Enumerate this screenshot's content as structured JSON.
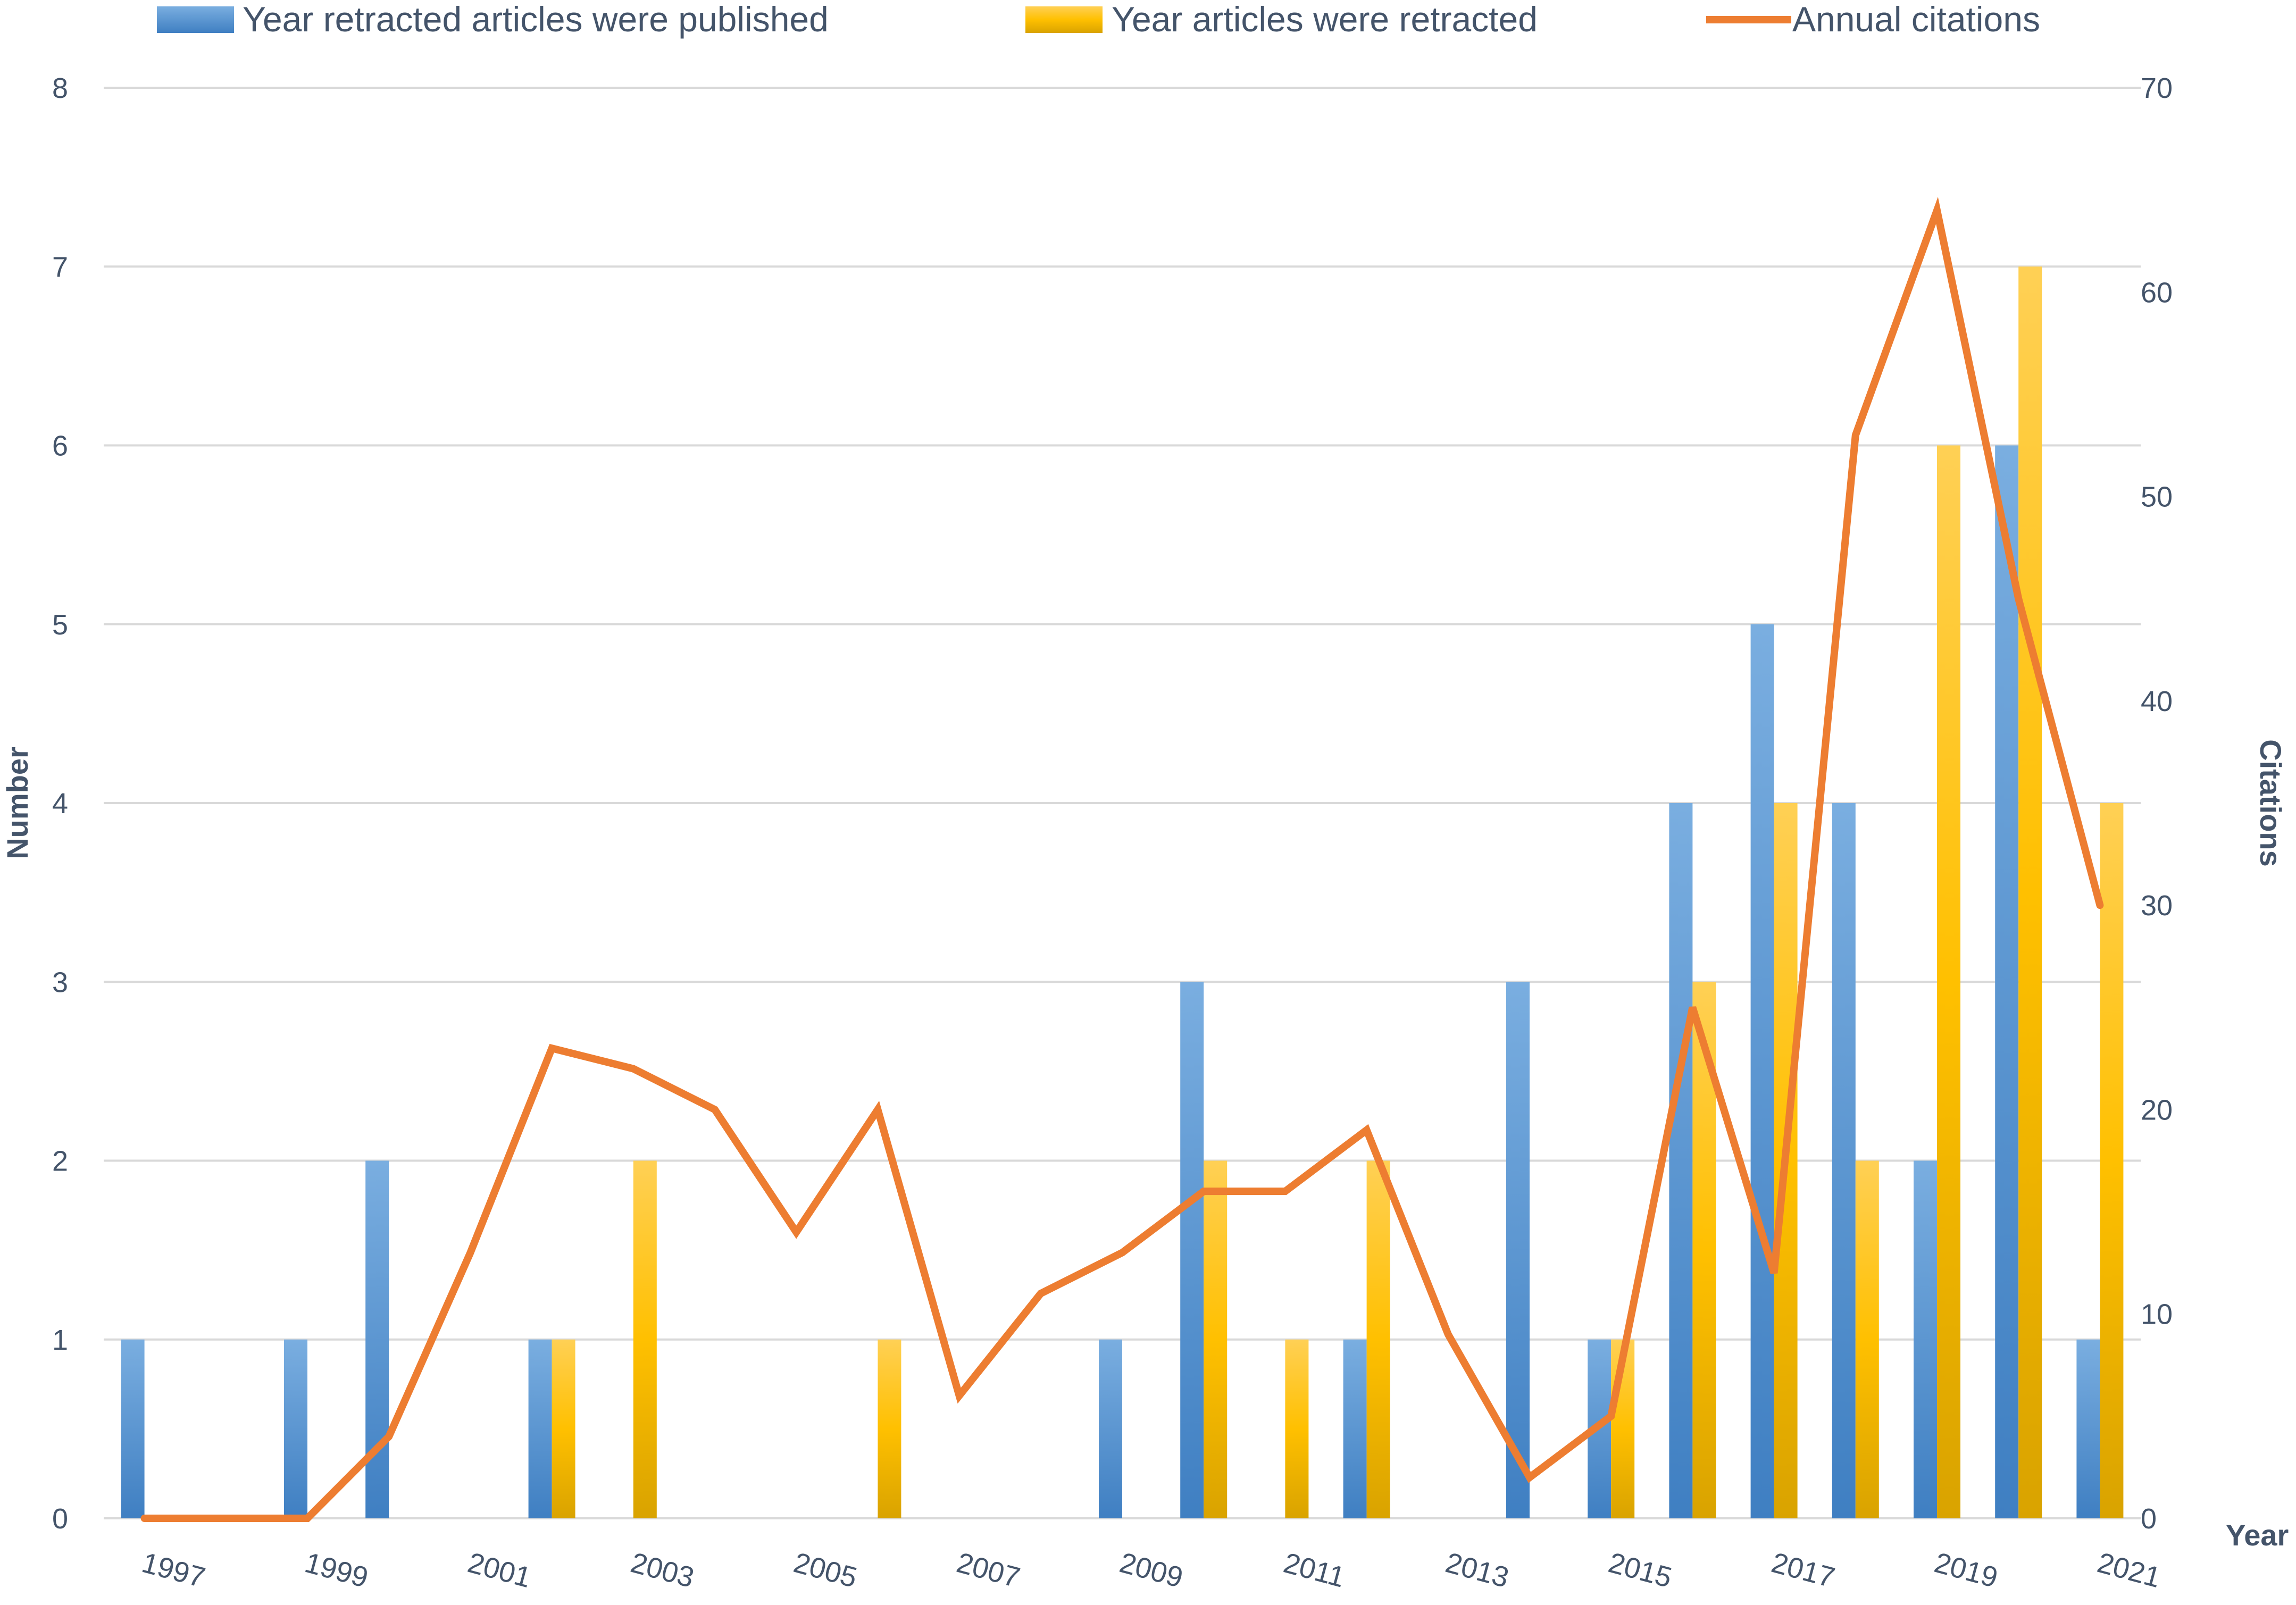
{
  "chart_data": {
    "type": "bar",
    "categories": [
      "1997",
      "1998",
      "1999",
      "2000",
      "2001",
      "2002",
      "2003",
      "2004",
      "2005",
      "2006",
      "2007",
      "2008",
      "2009",
      "2010",
      "2011",
      "2012",
      "2013",
      "2014",
      "2015",
      "2016",
      "2017",
      "2018",
      "2019",
      "2020",
      "2021"
    ],
    "x_tick_labels": [
      "1997",
      "1999",
      "2001",
      "2003",
      "2005",
      "2007",
      "2009",
      "2011",
      "2013",
      "2015",
      "2017",
      "2019",
      "2021"
    ],
    "series": [
      {
        "name": "Year retracted articles were published",
        "kind": "bar",
        "axis": "left",
        "color": "#5b9bd5",
        "values": [
          1,
          0,
          1,
          2,
          0,
          1,
          0,
          0,
          0,
          0,
          0,
          0,
          1,
          3,
          0,
          1,
          0,
          3,
          1,
          4,
          5,
          4,
          2,
          6,
          1
        ]
      },
      {
        "name": "Year articles were retracted",
        "kind": "bar",
        "axis": "left",
        "color": "#ffc000",
        "values": [
          0,
          0,
          0,
          0,
          0,
          1,
          2,
          0,
          0,
          1,
          0,
          0,
          0,
          2,
          1,
          2,
          0,
          0,
          1,
          3,
          4,
          2,
          6,
          7,
          4
        ]
      },
      {
        "name": "Annual citations",
        "kind": "line",
        "axis": "right",
        "color": "#ed7d31",
        "values": [
          0,
          0,
          0,
          4,
          13,
          23,
          22,
          20,
          14,
          20,
          6,
          11,
          13,
          16,
          16,
          19,
          9,
          2,
          5,
          25,
          12,
          53,
          64,
          45,
          30
        ]
      }
    ],
    "xlabel": "Year",
    "ylabel": "Number",
    "y2label": "Citations",
    "ylim": [
      0,
      8
    ],
    "y2lim": [
      0,
      70
    ],
    "yticks": [
      "0",
      "1",
      "2",
      "3",
      "4",
      "5",
      "6",
      "7",
      "8"
    ],
    "y2ticks": [
      "0",
      "10",
      "20",
      "30",
      "40",
      "50",
      "60",
      "70"
    ],
    "grid": true,
    "legend": "top"
  }
}
